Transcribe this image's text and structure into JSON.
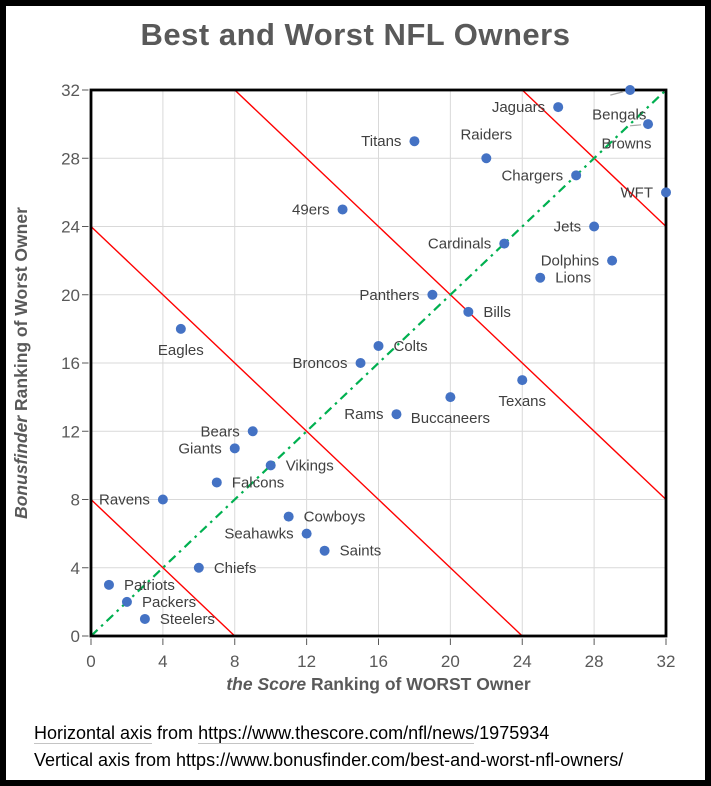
{
  "chart_data": {
    "type": "scatter",
    "title": "Best and Worst NFL Owners",
    "xlabel": "the Score Ranking of WORST Owner",
    "xlabel_italic_part": "the Score",
    "xlabel_regular_part": " Ranking of WORST Owner",
    "ylabel": "Bonusfinder Ranking of Worst Owner",
    "ylabel_italic_part": "Bonusfinder",
    "ylabel_regular_part": " Ranking of Worst Owner",
    "xlim": [
      0,
      32
    ],
    "ylim": [
      0,
      32
    ],
    "ticks": [
      0,
      4,
      8,
      12,
      16,
      20,
      24,
      28,
      32
    ],
    "grid": true,
    "legend": "none",
    "title_color": "#595959",
    "axis_text_color": "#595959",
    "grid_color": "#D9D9D9",
    "frame_color": "#000000",
    "marker_color": "#4472C4",
    "marker_radius": 5,
    "label_color": "#404040",
    "leader_color": "#A6A6A6",
    "identity_line": {
      "color": "#00B050",
      "style": "dash-dot",
      "from": [
        0,
        0
      ],
      "to": [
        32,
        32
      ]
    },
    "boundary_lines": {
      "color": "#FF0000",
      "x_plus_y_values": [
        8,
        24,
        40,
        56
      ]
    },
    "points": [
      {
        "team": "Patriots",
        "x": 1,
        "y": 3,
        "label_pos": "right"
      },
      {
        "team": "Packers",
        "x": 2,
        "y": 2,
        "label_pos": "right"
      },
      {
        "team": "Steelers",
        "x": 3,
        "y": 1,
        "label_pos": "right"
      },
      {
        "team": "Ravens",
        "x": 4,
        "y": 8,
        "label_pos": "left"
      },
      {
        "team": "Eagles",
        "x": 5,
        "y": 18,
        "label_pos": "below"
      },
      {
        "team": "Chiefs",
        "x": 6,
        "y": 4,
        "label_pos": "right"
      },
      {
        "team": "Falcons",
        "x": 7,
        "y": 9,
        "label_pos": "right"
      },
      {
        "team": "Giants",
        "x": 8,
        "y": 11,
        "label_pos": "left"
      },
      {
        "team": "Bears",
        "x": 9,
        "y": 12,
        "label_pos": "left"
      },
      {
        "team": "Vikings",
        "x": 10,
        "y": 10,
        "label_pos": "right"
      },
      {
        "team": "Cowboys",
        "x": 11,
        "y": 7,
        "label_pos": "right"
      },
      {
        "team": "Seahawks",
        "x": 12,
        "y": 6,
        "label_pos": "left"
      },
      {
        "team": "Saints",
        "x": 13,
        "y": 5,
        "label_pos": "right"
      },
      {
        "team": "49ers",
        "x": 14,
        "y": 25,
        "label_pos": "left"
      },
      {
        "team": "Broncos",
        "x": 15,
        "y": 16,
        "label_pos": "left"
      },
      {
        "team": "Colts",
        "x": 16,
        "y": 17,
        "label_pos": "right"
      },
      {
        "team": "Rams",
        "x": 17,
        "y": 13,
        "label_pos": "left"
      },
      {
        "team": "Titans",
        "x": 18,
        "y": 29,
        "label_pos": "left"
      },
      {
        "team": "Panthers",
        "x": 19,
        "y": 20,
        "label_pos": "left"
      },
      {
        "team": "Buccaneers",
        "x": 20,
        "y": 14,
        "label_pos": "below"
      },
      {
        "team": "Bills",
        "x": 21,
        "y": 19,
        "label_pos": "right"
      },
      {
        "team": "Raiders",
        "x": 22,
        "y": 28,
        "label_pos": "above"
      },
      {
        "team": "Cardinals",
        "x": 23,
        "y": 23,
        "label_pos": "left"
      },
      {
        "team": "Texans",
        "x": 24,
        "y": 15,
        "label_pos": "below"
      },
      {
        "team": "Lions",
        "x": 25,
        "y": 21,
        "label_pos": "right"
      },
      {
        "team": "Jaguars",
        "x": 26,
        "y": 31,
        "label_pos": "left"
      },
      {
        "team": "Chargers",
        "x": 27,
        "y": 27,
        "label_pos": "left"
      },
      {
        "team": "Jets",
        "x": 28,
        "y": 24,
        "label_pos": "left"
      },
      {
        "team": "Dolphins",
        "x": 29,
        "y": 22,
        "label_pos": "left"
      },
      {
        "team": "Bengals",
        "x": 30,
        "y": 32,
        "label_pos": "custom",
        "label_at": [
          29.4,
          30.55
        ],
        "leader_from": [
          28.9,
          31.7
        ]
      },
      {
        "team": "Browns",
        "x": 31,
        "y": 30,
        "label_pos": "custom",
        "label_at": [
          29.8,
          28.85
        ],
        "leader_from": [
          30.0,
          29.9
        ]
      },
      {
        "team": "WFT",
        "x": 32,
        "y": 26,
        "label_pos": "left"
      }
    ]
  },
  "footer": {
    "line1_segments": [
      {
        "text": "Horizontal axis",
        "underline": true
      },
      {
        "text": " from ",
        "underline": false
      },
      {
        "text": "https://www.thescore.com/nfl/news",
        "underline": true
      },
      {
        "text": "/1975934",
        "underline": false
      }
    ],
    "line2": "Vertical axis from https://www.bonusfinder.com/best-and-worst-nfl-owners/"
  }
}
